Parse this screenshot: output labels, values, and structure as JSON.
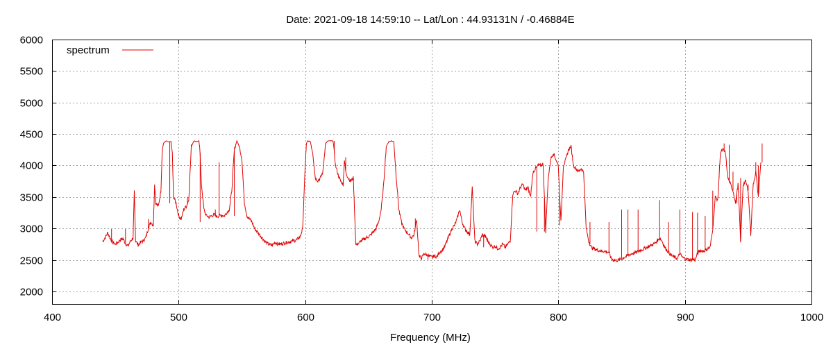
{
  "chart_data": {
    "type": "line",
    "title": "Date: 2021-09-18 14:59:10  --  Lat/Lon : 44.93131N / -0.46884E",
    "xlabel": "Frequency (MHz)",
    "ylabel": "",
    "xlim": [
      400,
      1000
    ],
    "ylim": [
      1800,
      6000
    ],
    "x_ticks": [
      400,
      500,
      600,
      700,
      800,
      900,
      1000
    ],
    "y_ticks": [
      2000,
      2500,
      3000,
      3500,
      4000,
      4500,
      5000,
      5500,
      6000
    ],
    "grid": true,
    "legend_position": "top-left",
    "series": [
      {
        "name": "spectrum",
        "color": "#e00000",
        "points": [
          [
            440,
            2790
          ],
          [
            442,
            2860
          ],
          [
            444,
            2930
          ],
          [
            446,
            2840
          ],
          [
            448,
            2780
          ],
          [
            450,
            2750
          ],
          [
            452,
            2780
          ],
          [
            454,
            2820
          ],
          [
            456,
            2840
          ],
          [
            458,
            2760
          ],
          [
            460,
            2720
          ],
          [
            462,
            2800
          ],
          [
            464,
            2850
          ],
          [
            465,
            3590
          ],
          [
            466,
            2800
          ],
          [
            468,
            2740
          ],
          [
            470,
            2780
          ],
          [
            472,
            2800
          ],
          [
            474,
            2850
          ],
          [
            476,
            3000
          ],
          [
            478,
            3100
          ],
          [
            480,
            3050
          ],
          [
            481,
            3690
          ],
          [
            482,
            3400
          ],
          [
            484,
            3350
          ],
          [
            486,
            3600
          ],
          [
            487,
            4200
          ],
          [
            488,
            4350
          ],
          [
            490,
            4390
          ],
          [
            492,
            4370
          ],
          [
            494,
            4380
          ],
          [
            495,
            4200
          ],
          [
            496,
            3500
          ],
          [
            498,
            3400
          ],
          [
            500,
            3200
          ],
          [
            502,
            3150
          ],
          [
            504,
            3300
          ],
          [
            506,
            3350
          ],
          [
            508,
            3450
          ],
          [
            510,
            4300
          ],
          [
            512,
            4390
          ],
          [
            514,
            4380
          ],
          [
            516,
            4390
          ],
          [
            517,
            4200
          ],
          [
            518,
            3700
          ],
          [
            520,
            3300
          ],
          [
            522,
            3200
          ],
          [
            524,
            3180
          ],
          [
            526,
            3200
          ],
          [
            528,
            3220
          ],
          [
            530,
            3190
          ],
          [
            532,
            3200
          ],
          [
            534,
            3210
          ],
          [
            536,
            3200
          ],
          [
            538,
            3250
          ],
          [
            540,
            3300
          ],
          [
            542,
            3600
          ],
          [
            544,
            4250
          ],
          [
            546,
            4390
          ],
          [
            548,
            4300
          ],
          [
            550,
            4100
          ],
          [
            552,
            3400
          ],
          [
            554,
            3200
          ],
          [
            556,
            3150
          ],
          [
            558,
            3100
          ],
          [
            560,
            3000
          ],
          [
            562,
            2950
          ],
          [
            564,
            2900
          ],
          [
            566,
            2850
          ],
          [
            568,
            2800
          ],
          [
            570,
            2760
          ],
          [
            572,
            2740
          ],
          [
            574,
            2730
          ],
          [
            576,
            2780
          ],
          [
            578,
            2760
          ],
          [
            580,
            2750
          ],
          [
            582,
            2760
          ],
          [
            584,
            2770
          ],
          [
            586,
            2780
          ],
          [
            588,
            2790
          ],
          [
            590,
            2800
          ],
          [
            592,
            2810
          ],
          [
            594,
            2830
          ],
          [
            596,
            2870
          ],
          [
            598,
            3000
          ],
          [
            600,
            4000
          ],
          [
            601,
            4350
          ],
          [
            602,
            4390
          ],
          [
            604,
            4380
          ],
          [
            606,
            4200
          ],
          [
            608,
            3800
          ],
          [
            610,
            3760
          ],
          [
            612,
            3800
          ],
          [
            614,
            3900
          ],
          [
            616,
            4350
          ],
          [
            618,
            4390
          ],
          [
            620,
            4390
          ],
          [
            622,
            4390
          ],
          [
            624,
            4000
          ],
          [
            626,
            3850
          ],
          [
            628,
            3750
          ],
          [
            630,
            3700
          ],
          [
            631,
            4100
          ],
          [
            632,
            3900
          ],
          [
            634,
            3800
          ],
          [
            636,
            3750
          ],
          [
            638,
            3800
          ],
          [
            640,
            2740
          ],
          [
            642,
            2760
          ],
          [
            644,
            2800
          ],
          [
            646,
            2820
          ],
          [
            648,
            2850
          ],
          [
            650,
            2870
          ],
          [
            652,
            2900
          ],
          [
            654,
            2950
          ],
          [
            656,
            3000
          ],
          [
            658,
            3100
          ],
          [
            660,
            3300
          ],
          [
            662,
            3700
          ],
          [
            664,
            4300
          ],
          [
            666,
            4380
          ],
          [
            668,
            4390
          ],
          [
            670,
            4380
          ],
          [
            672,
            3800
          ],
          [
            674,
            3300
          ],
          [
            676,
            3100
          ],
          [
            678,
            3000
          ],
          [
            680,
            2950
          ],
          [
            682,
            2900
          ],
          [
            684,
            2850
          ],
          [
            686,
            2900
          ],
          [
            688,
            3150
          ],
          [
            690,
            2550
          ],
          [
            692,
            2530
          ],
          [
            694,
            2600
          ],
          [
            696,
            2580
          ],
          [
            698,
            2560
          ],
          [
            700,
            2540
          ],
          [
            702,
            2560
          ],
          [
            704,
            2550
          ],
          [
            706,
            2620
          ],
          [
            708,
            2650
          ],
          [
            710,
            2700
          ],
          [
            712,
            2800
          ],
          [
            714,
            2900
          ],
          [
            716,
            3000
          ],
          [
            718,
            3050
          ],
          [
            720,
            3150
          ],
          [
            722,
            3300
          ],
          [
            724,
            3100
          ],
          [
            726,
            3000
          ],
          [
            728,
            2950
          ],
          [
            730,
            2900
          ],
          [
            732,
            3650
          ],
          [
            734,
            2800
          ],
          [
            736,
            2750
          ],
          [
            738,
            2800
          ],
          [
            740,
            2900
          ],
          [
            742,
            2880
          ],
          [
            744,
            2800
          ],
          [
            746,
            2750
          ],
          [
            748,
            2700
          ],
          [
            750,
            2720
          ],
          [
            752,
            2680
          ],
          [
            754,
            2700
          ],
          [
            756,
            2750
          ],
          [
            758,
            2700
          ],
          [
            760,
            2750
          ],
          [
            762,
            2800
          ],
          [
            764,
            3550
          ],
          [
            766,
            3600
          ],
          [
            768,
            3550
          ],
          [
            770,
            3650
          ],
          [
            772,
            3700
          ],
          [
            774,
            3600
          ],
          [
            776,
            3650
          ],
          [
            778,
            3500
          ],
          [
            780,
            3900
          ],
          [
            782,
            3950
          ],
          [
            784,
            4000
          ],
          [
            786,
            4000
          ],
          [
            788,
            4020
          ],
          [
            790,
            2950
          ],
          [
            792,
            3800
          ],
          [
            794,
            4100
          ],
          [
            796,
            4200
          ],
          [
            798,
            4100
          ],
          [
            800,
            4000
          ],
          [
            802,
            3100
          ],
          [
            804,
            4000
          ],
          [
            806,
            4100
          ],
          [
            808,
            4250
          ],
          [
            810,
            4300
          ],
          [
            812,
            4000
          ],
          [
            814,
            3950
          ],
          [
            816,
            3900
          ],
          [
            818,
            3950
          ],
          [
            820,
            3900
          ],
          [
            822,
            3000
          ],
          [
            824,
            2800
          ],
          [
            826,
            2700
          ],
          [
            828,
            2680
          ],
          [
            830,
            2660
          ],
          [
            832,
            2650
          ],
          [
            834,
            2640
          ],
          [
            836,
            2640
          ],
          [
            838,
            2630
          ],
          [
            840,
            2620
          ],
          [
            842,
            2510
          ],
          [
            844,
            2500
          ],
          [
            846,
            2490
          ],
          [
            848,
            2500
          ],
          [
            850,
            2520
          ],
          [
            852,
            2540
          ],
          [
            854,
            2560
          ],
          [
            856,
            2580
          ],
          [
            858,
            2600
          ],
          [
            860,
            2610
          ],
          [
            862,
            2620
          ],
          [
            864,
            2650
          ],
          [
            866,
            2660
          ],
          [
            868,
            2680
          ],
          [
            870,
            2700
          ],
          [
            872,
            2720
          ],
          [
            874,
            2740
          ],
          [
            876,
            2760
          ],
          [
            878,
            2800
          ],
          [
            880,
            2850
          ],
          [
            882,
            2800
          ],
          [
            884,
            2700
          ],
          [
            886,
            2650
          ],
          [
            888,
            2600
          ],
          [
            890,
            2560
          ],
          [
            892,
            2540
          ],
          [
            894,
            2520
          ],
          [
            896,
            2600
          ],
          [
            898,
            2540
          ],
          [
            900,
            2520
          ],
          [
            902,
            2510
          ],
          [
            904,
            2500
          ],
          [
            906,
            2510
          ],
          [
            908,
            2500
          ],
          [
            910,
            2600
          ],
          [
            912,
            2650
          ],
          [
            914,
            2640
          ],
          [
            916,
            2650
          ],
          [
            918,
            2680
          ],
          [
            920,
            2700
          ],
          [
            922,
            3000
          ],
          [
            924,
            3500
          ],
          [
            926,
            3450
          ],
          [
            928,
            4200
          ],
          [
            930,
            4250
          ],
          [
            932,
            4200
          ],
          [
            934,
            3800
          ],
          [
            936,
            3700
          ],
          [
            938,
            3600
          ],
          [
            940,
            3400
          ],
          [
            942,
            3700
          ],
          [
            944,
            2800
          ],
          [
            946,
            3700
          ],
          [
            948,
            3750
          ],
          [
            950,
            3600
          ],
          [
            952,
            2900
          ],
          [
            954,
            3700
          ],
          [
            956,
            3900
          ],
          [
            958,
            3500
          ],
          [
            960,
            4050
          ]
        ],
        "spikes": [
          [
            447,
            2990
          ],
          [
            458,
            2990
          ],
          [
            476,
            3150
          ],
          [
            481,
            3690
          ],
          [
            493,
            3400
          ],
          [
            507,
            3500
          ],
          [
            517,
            3100
          ],
          [
            529,
            3300
          ],
          [
            532,
            4050
          ],
          [
            536,
            3200
          ],
          [
            544,
            3200
          ],
          [
            594,
            2820
          ],
          [
            623,
            4390
          ],
          [
            632,
            4130
          ],
          [
            687,
            3160
          ],
          [
            697,
            2500
          ],
          [
            732,
            3650
          ],
          [
            741,
            2700
          ],
          [
            744,
            2850
          ],
          [
            775,
            3650
          ],
          [
            783,
            2950
          ],
          [
            789,
            2950
          ],
          [
            801,
            3050
          ],
          [
            810,
            4310
          ],
          [
            825,
            3100
          ],
          [
            840,
            3100
          ],
          [
            850,
            3300
          ],
          [
            855,
            3300
          ],
          [
            863,
            3300
          ],
          [
            880,
            3450
          ],
          [
            887,
            3100
          ],
          [
            896,
            3300
          ],
          [
            906,
            3260
          ],
          [
            910,
            3250
          ],
          [
            916,
            3200
          ],
          [
            922,
            3600
          ],
          [
            927,
            3800
          ],
          [
            931,
            4350
          ],
          [
            935,
            4330
          ],
          [
            938,
            3900
          ],
          [
            941,
            3400
          ],
          [
            944,
            3800
          ],
          [
            950,
            3700
          ],
          [
            956,
            4050
          ],
          [
            958,
            4000
          ],
          [
            961,
            4350
          ]
        ]
      }
    ]
  }
}
